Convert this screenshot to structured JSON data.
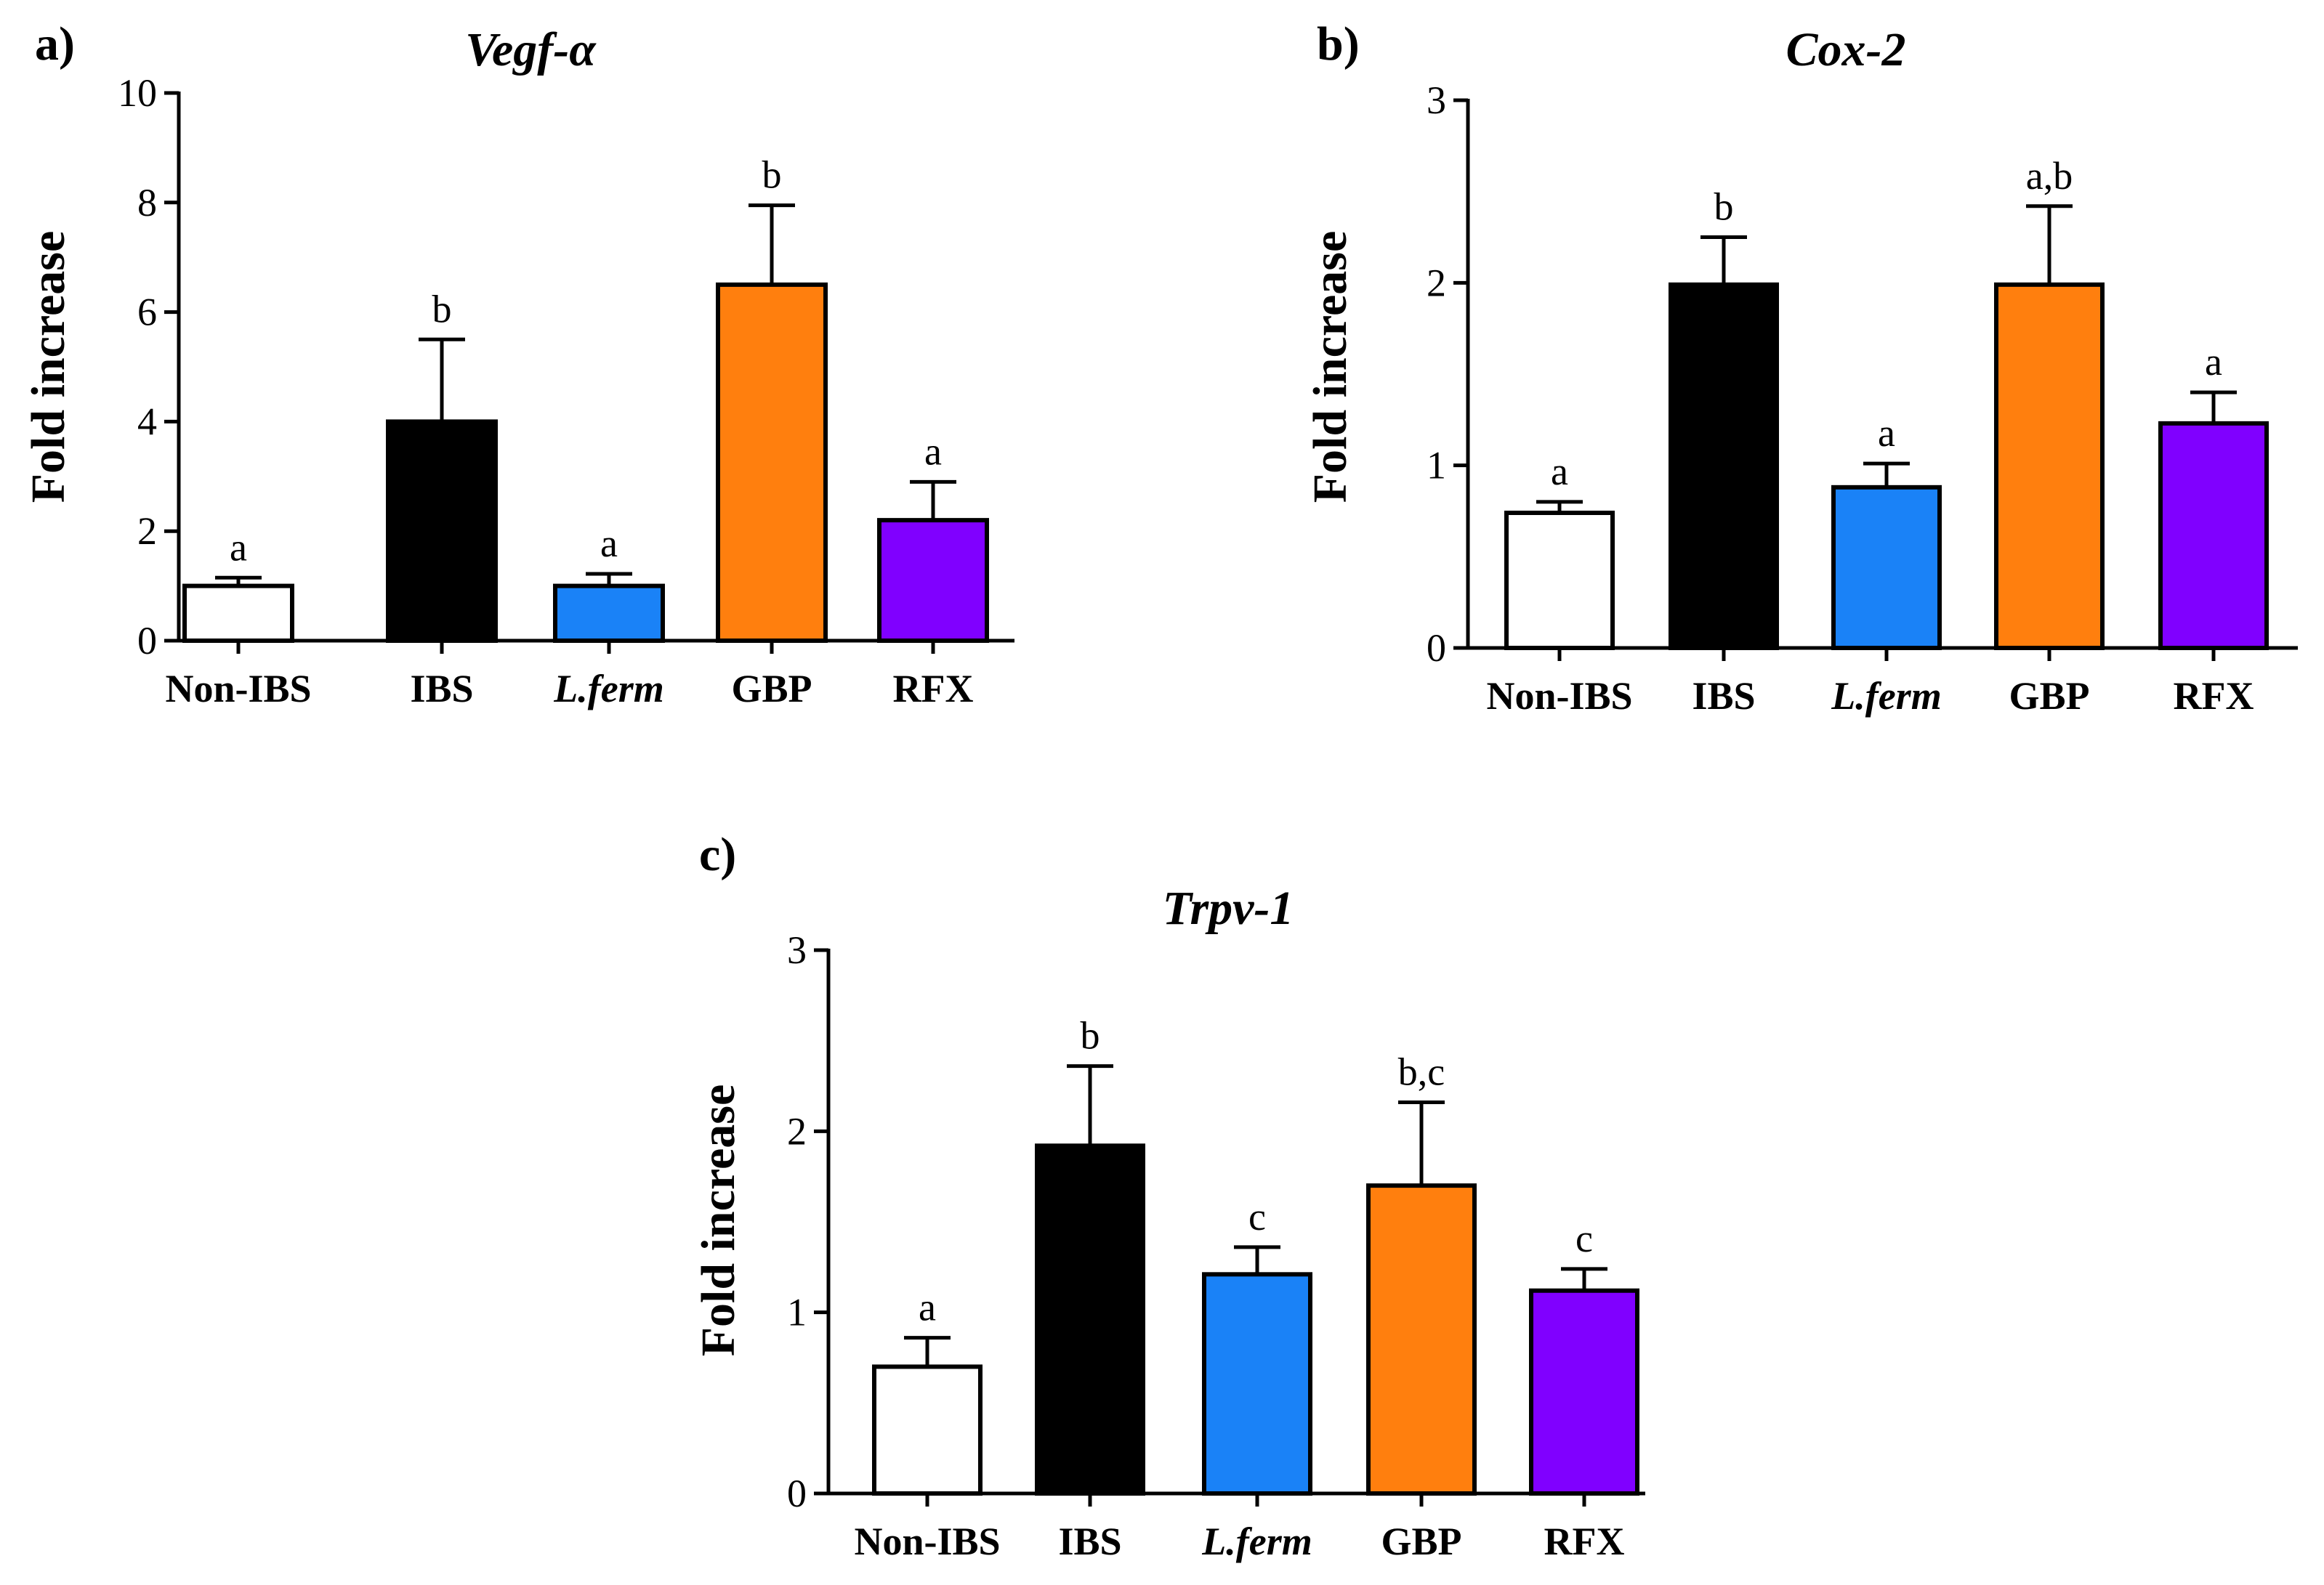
{
  "chart_data": [
    {
      "type": "bar",
      "panel": "a)",
      "title": "Vegf-α",
      "ylabel": "Fold increase",
      "xlabel": "",
      "ylim": [
        0,
        10
      ],
      "yticks": [
        0,
        2,
        4,
        6,
        8,
        10
      ],
      "categories": [
        "Non-IBS",
        "IBS",
        "L.ferm",
        "GBP",
        "RFX"
      ],
      "italic_categories": [
        "L.ferm"
      ],
      "values": [
        1.0,
        4.0,
        1.0,
        6.5,
        2.2
      ],
      "errors": [
        0.15,
        1.5,
        0.22,
        1.45,
        0.7
      ],
      "significance": [
        "a",
        "b",
        "a",
        "b",
        "a"
      ],
      "colors": [
        "#ffffff",
        "#000000",
        "#1a82f7",
        "#ff7f0e",
        "#8000ff"
      ]
    },
    {
      "type": "bar",
      "panel": "b)",
      "title": "Cox-2",
      "ylabel": "Fold increase",
      "xlabel": "",
      "ylim": [
        0,
        3
      ],
      "yticks": [
        0,
        1,
        2,
        3
      ],
      "categories": [
        "Non-IBS",
        "IBS",
        "L.ferm",
        "GBP",
        "RFX"
      ],
      "italic_categories": [
        "L.ferm"
      ],
      "values": [
        0.74,
        1.99,
        0.88,
        1.99,
        1.23
      ],
      "errors": [
        0.06,
        0.26,
        0.13,
        0.43,
        0.17
      ],
      "significance": [
        "a",
        "b",
        "a",
        "a,b",
        "a"
      ],
      "colors": [
        "#ffffff",
        "#000000",
        "#1a82f7",
        "#ff7f0e",
        "#8000ff"
      ]
    },
    {
      "type": "bar",
      "panel": "c)",
      "title": "Trpv-1",
      "ylabel": "Fold increase",
      "xlabel": "",
      "ylim": [
        0,
        3
      ],
      "yticks": [
        0,
        1,
        2,
        3
      ],
      "categories": [
        "Non-IBS",
        "IBS",
        "L.ferm",
        "GBP",
        "RFX"
      ],
      "italic_categories": [
        "L.ferm"
      ],
      "values": [
        0.7,
        1.92,
        1.21,
        1.7,
        1.12
      ],
      "errors": [
        0.16,
        0.44,
        0.15,
        0.46,
        0.12
      ],
      "significance": [
        "a",
        "b",
        "c",
        "b,c",
        "c"
      ],
      "colors": [
        "#ffffff",
        "#000000",
        "#1a82f7",
        "#ff7f0e",
        "#8000ff"
      ]
    }
  ]
}
